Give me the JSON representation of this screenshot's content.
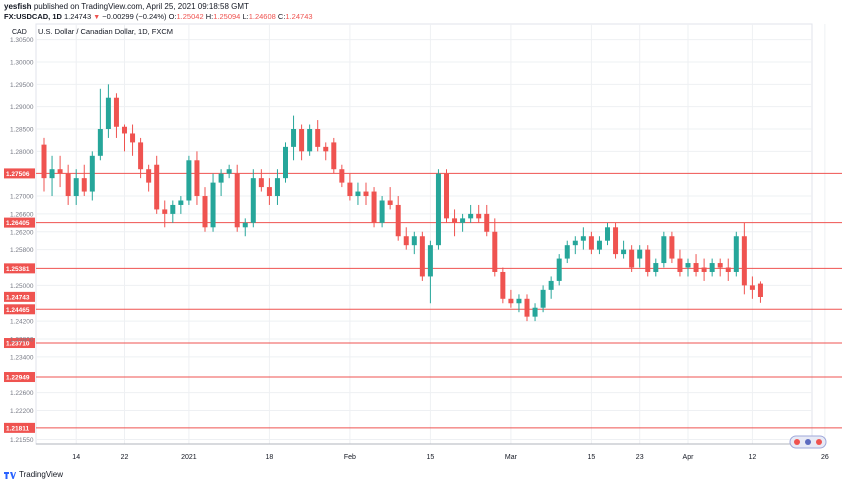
{
  "header": {
    "author": "yesfish",
    "published": "published on TradingView.com, April 25, 2021 09:18:58 GMT",
    "symbol": "FX:USDCAD, 1D",
    "last": "1.24743",
    "change": "−0.00299 (−0.24%)",
    "o_label": "O:",
    "o": "1.25042",
    "h_label": "H:",
    "h": "1.25094",
    "l_label": "L:",
    "l": "1.24608",
    "c_label": "C:",
    "c": "1.24743"
  },
  "footer": {
    "brand": "TradingView"
  },
  "colors": {
    "up": "#26a69a",
    "down": "#ef5350",
    "level": "#ef5350",
    "grid": "#eef0f3",
    "axis": "#787b86"
  },
  "chart_data": {
    "type": "candlestick",
    "title": "U.S. Dollar / Canadian Dollar, 1D, FXCM",
    "currency_label": "CAD",
    "ylim": [
      1.2145,
      1.3085
    ],
    "y_ticks": [
      "1.30500",
      "1.30000",
      "1.29500",
      "1.29000",
      "1.28500",
      "1.28000",
      "1.27000",
      "1.26600",
      "1.26200",
      "1.25800",
      "1.25000",
      "1.24200",
      "1.23800",
      "1.23400",
      "1.22600",
      "1.22200",
      "1.21550"
    ],
    "x_ticks": [
      {
        "label": "14",
        "i": 4
      },
      {
        "label": "22",
        "i": 10
      },
      {
        "label": "2021",
        "i": 18
      },
      {
        "label": "18",
        "i": 28
      },
      {
        "label": "Feb",
        "i": 38
      },
      {
        "label": "15",
        "i": 48
      },
      {
        "label": "Mar",
        "i": 58
      },
      {
        "label": "15",
        "i": 68
      },
      {
        "label": "23",
        "i": 74
      },
      {
        "label": "Apr",
        "i": 80
      },
      {
        "label": "12",
        "i": 88
      },
      {
        "label": "26",
        "i": 97
      }
    ],
    "levels": [
      "1.27506",
      "1.26405",
      "1.25381",
      "1.24465",
      "1.23710",
      "1.22949",
      "1.21811"
    ],
    "last_price": "1.24743",
    "candles": [
      [
        1.2815,
        1.283,
        1.271,
        1.274
      ],
      [
        1.274,
        1.279,
        1.27,
        1.276
      ],
      [
        1.276,
        1.279,
        1.272,
        1.275
      ],
      [
        1.275,
        1.277,
        1.268,
        1.27
      ],
      [
        1.27,
        1.276,
        1.268,
        1.274
      ],
      [
        1.274,
        1.277,
        1.27,
        1.271
      ],
      [
        1.271,
        1.28,
        1.269,
        1.279
      ],
      [
        1.279,
        1.294,
        1.278,
        1.285
      ],
      [
        1.285,
        1.295,
        1.283,
        1.292
      ],
      [
        1.292,
        1.293,
        1.283,
        1.2855
      ],
      [
        1.2855,
        1.286,
        1.28,
        1.284
      ],
      [
        1.284,
        1.286,
        1.279,
        1.282
      ],
      [
        1.282,
        1.283,
        1.274,
        1.276
      ],
      [
        1.276,
        1.277,
        1.271,
        1.273
      ],
      [
        1.277,
        1.279,
        1.266,
        1.267
      ],
      [
        1.267,
        1.269,
        1.263,
        1.266
      ],
      [
        1.266,
        1.269,
        1.264,
        1.268
      ],
      [
        1.268,
        1.27,
        1.266,
        1.269
      ],
      [
        1.269,
        1.279,
        1.268,
        1.278
      ],
      [
        1.278,
        1.28,
        1.268,
        1.27
      ],
      [
        1.27,
        1.272,
        1.262,
        1.263
      ],
      [
        1.263,
        1.275,
        1.262,
        1.273
      ],
      [
        1.273,
        1.276,
        1.27,
        1.275
      ],
      [
        1.275,
        1.277,
        1.274,
        1.276
      ],
      [
        1.275,
        1.277,
        1.262,
        1.263
      ],
      [
        1.263,
        1.265,
        1.261,
        1.264
      ],
      [
        1.264,
        1.276,
        1.263,
        1.274
      ],
      [
        1.274,
        1.276,
        1.271,
        1.272
      ],
      [
        1.272,
        1.274,
        1.268,
        1.27
      ],
      [
        1.27,
        1.276,
        1.268,
        1.274
      ],
      [
        1.274,
        1.282,
        1.273,
        1.281
      ],
      [
        1.281,
        1.288,
        1.278,
        1.285
      ],
      [
        1.285,
        1.286,
        1.278,
        1.28
      ],
      [
        1.28,
        1.286,
        1.279,
        1.285
      ],
      [
        1.285,
        1.287,
        1.28,
        1.281
      ],
      [
        1.281,
        1.282,
        1.278,
        1.28
      ],
      [
        1.282,
        1.283,
        1.275,
        1.276
      ],
      [
        1.276,
        1.277,
        1.272,
        1.273
      ],
      [
        1.273,
        1.275,
        1.269,
        1.27
      ],
      [
        1.27,
        1.273,
        1.268,
        1.271
      ],
      [
        1.271,
        1.273,
        1.268,
        1.27
      ],
      [
        1.271,
        1.272,
        1.263,
        1.264
      ],
      [
        1.264,
        1.27,
        1.263,
        1.269
      ],
      [
        1.269,
        1.272,
        1.267,
        1.268
      ],
      [
        1.268,
        1.27,
        1.26,
        1.261
      ],
      [
        1.261,
        1.263,
        1.258,
        1.259
      ],
      [
        1.259,
        1.262,
        1.257,
        1.261
      ],
      [
        1.261,
        1.262,
        1.251,
        1.252
      ],
      [
        1.252,
        1.26,
        1.246,
        1.259
      ],
      [
        1.259,
        1.276,
        1.258,
        1.275
      ],
      [
        1.275,
        1.276,
        1.264,
        1.265
      ],
      [
        1.265,
        1.267,
        1.261,
        1.264
      ],
      [
        1.264,
        1.266,
        1.262,
        1.265
      ],
      [
        1.265,
        1.268,
        1.264,
        1.266
      ],
      [
        1.266,
        1.268,
        1.264,
        1.265
      ],
      [
        1.266,
        1.268,
        1.261,
        1.262
      ],
      [
        1.262,
        1.265,
        1.252,
        1.253
      ],
      [
        1.253,
        1.254,
        1.246,
        1.247
      ],
      [
        1.247,
        1.249,
        1.245,
        1.246
      ],
      [
        1.246,
        1.248,
        1.244,
        1.247
      ],
      [
        1.247,
        1.248,
        1.242,
        1.243
      ],
      [
        1.243,
        1.246,
        1.242,
        1.245
      ],
      [
        1.245,
        1.25,
        1.244,
        1.249
      ],
      [
        1.249,
        1.252,
        1.247,
        1.251
      ],
      [
        1.251,
        1.257,
        1.25,
        1.256
      ],
      [
        1.256,
        1.26,
        1.255,
        1.259
      ],
      [
        1.259,
        1.261,
        1.257,
        1.26
      ],
      [
        1.26,
        1.263,
        1.258,
        1.261
      ],
      [
        1.261,
        1.262,
        1.257,
        1.258
      ],
      [
        1.258,
        1.261,
        1.257,
        1.26
      ],
      [
        1.26,
        1.264,
        1.259,
        1.263
      ],
      [
        1.263,
        1.264,
        1.256,
        1.257
      ],
      [
        1.257,
        1.26,
        1.256,
        1.258
      ],
      [
        1.258,
        1.259,
        1.253,
        1.254
      ],
      [
        1.256,
        1.259,
        1.254,
        1.258
      ],
      [
        1.258,
        1.259,
        1.252,
        1.253
      ],
      [
        1.253,
        1.256,
        1.252,
        1.255
      ],
      [
        1.255,
        1.262,
        1.254,
        1.261
      ],
      [
        1.261,
        1.262,
        1.255,
        1.256
      ],
      [
        1.256,
        1.258,
        1.252,
        1.253
      ],
      [
        1.254,
        1.256,
        1.252,
        1.255
      ],
      [
        1.255,
        1.257,
        1.252,
        1.253
      ],
      [
        1.254,
        1.256,
        1.251,
        1.253
      ],
      [
        1.253,
        1.256,
        1.252,
        1.255
      ],
      [
        1.255,
        1.256,
        1.252,
        1.254
      ],
      [
        1.254,
        1.256,
        1.251,
        1.253
      ],
      [
        1.253,
        1.262,
        1.252,
        1.261
      ],
      [
        1.261,
        1.264,
        1.248,
        1.25
      ],
      [
        1.25,
        1.252,
        1.247,
        1.249
      ],
      [
        1.2504,
        1.2509,
        1.2461,
        1.2474
      ]
    ]
  }
}
